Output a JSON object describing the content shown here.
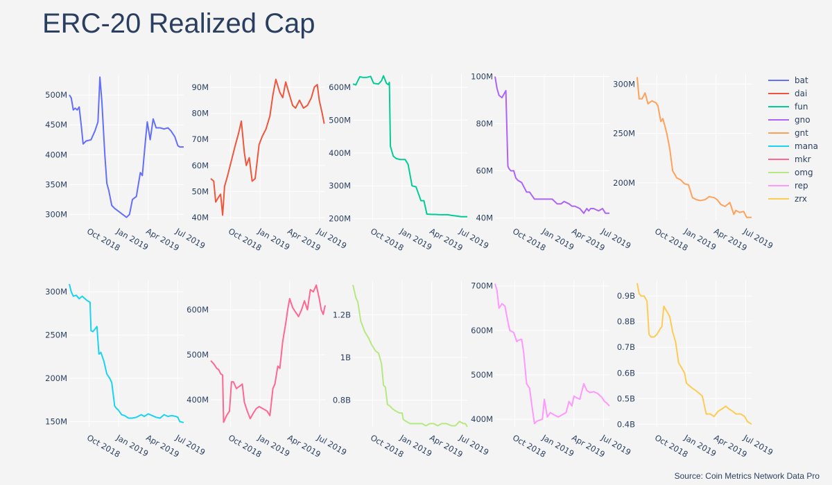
{
  "title": "ERC-20 Realized Cap",
  "source": "Source: Coin Metrics Network Data Pro",
  "legend": [
    {
      "name": "bat",
      "color": "#636efa"
    },
    {
      "name": "dai",
      "color": "#EF553B"
    },
    {
      "name": "fun",
      "color": "#00cc96"
    },
    {
      "name": "gno",
      "color": "#ab63fa"
    },
    {
      "name": "gnt",
      "color": "#FFA15A"
    },
    {
      "name": "mana",
      "color": "#19d3f3"
    },
    {
      "name": "mkr",
      "color": "#FF6692"
    },
    {
      "name": "omg",
      "color": "#B6E880"
    },
    {
      "name": "rep",
      "color": "#FF97FF"
    },
    {
      "name": "zrx",
      "color": "#FECB52"
    }
  ],
  "chart_data": [
    {
      "type": "line",
      "name": "bat",
      "color": "#636efa",
      "x_unit": "months since 2018-07-01",
      "xlim": [
        1.0,
        12.6
      ],
      "x_ticks": [
        3,
        6,
        9,
        12
      ],
      "x_tick_labels": [
        "Oct 2018",
        "Jan 2019",
        "Apr 2019",
        "Jul 2019"
      ],
      "ylim": [
        290,
        535
      ],
      "y_ticks": [
        300,
        350,
        400,
        450,
        500
      ],
      "y_tick_labels": [
        "300M",
        "350M",
        "400M",
        "450M",
        "500M"
      ],
      "y_unit": "USD millions",
      "x": [
        1.0,
        1.2,
        1.4,
        1.6,
        1.8,
        2.0,
        2.2,
        2.4,
        2.7,
        3.2,
        3.6,
        3.9,
        4.1,
        4.3,
        4.6,
        4.8,
        5.0,
        5.3,
        5.6,
        6.0,
        6.4,
        6.8,
        7.1,
        7.4,
        7.8,
        8.2,
        8.4,
        8.7,
        8.9,
        9.2,
        9.5,
        9.8,
        10.2,
        10.6,
        11.0,
        11.3,
        11.7,
        12.0,
        12.2,
        12.6
      ],
      "y": [
        500,
        495,
        475,
        478,
        475,
        480,
        450,
        418,
        423,
        425,
        440,
        455,
        530,
        490,
        400,
        352,
        340,
        315,
        310,
        305,
        300,
        295,
        300,
        325,
        330,
        370,
        365,
        420,
        455,
        425,
        460,
        445,
        445,
        443,
        445,
        440,
        430,
        415,
        413,
        413
      ]
    },
    {
      "type": "line",
      "name": "dai",
      "color": "#EF553B",
      "x_unit": "months since 2018-07-01",
      "xlim": [
        1.0,
        12.6
      ],
      "x_ticks": [
        3,
        6,
        9,
        12
      ],
      "x_tick_labels": [
        "Oct 2018",
        "Jan 2019",
        "Apr 2019",
        "Jul 2019"
      ],
      "ylim": [
        39,
        95
      ],
      "y_ticks": [
        40,
        50,
        60,
        70,
        80,
        90
      ],
      "y_tick_labels": [
        "40M",
        "50M",
        "60M",
        "70M",
        "80M",
        "90M"
      ],
      "y_unit": "USD millions",
      "x": [
        1.0,
        1.3,
        1.5,
        1.8,
        2.0,
        2.2,
        2.4,
        2.7,
        3.1,
        3.5,
        3.8,
        4.1,
        4.4,
        4.6,
        4.9,
        5.2,
        5.5,
        5.9,
        6.2,
        6.6,
        7.0,
        7.3,
        7.6,
        8.0,
        8.3,
        8.6,
        8.9,
        9.3,
        9.6,
        10.0,
        10.4,
        10.8,
        11.2,
        11.5,
        11.8,
        12.0,
        12.3,
        12.5
      ],
      "y": [
        55,
        54,
        46,
        48,
        49,
        41,
        52,
        56,
        62,
        68,
        72,
        77,
        65,
        60,
        63,
        54,
        55,
        68,
        71,
        74,
        79,
        87,
        93,
        88,
        86,
        92,
        88,
        83,
        82,
        85,
        82,
        83,
        86,
        90,
        91,
        85,
        80,
        76
      ]
    },
    {
      "type": "line",
      "name": "fun",
      "color": "#00cc96",
      "x_unit": "months since 2018-07-01",
      "xlim": [
        1.0,
        12.6
      ],
      "x_ticks": [
        3,
        6,
        9,
        12
      ],
      "x_tick_labels": [
        "Oct 2018",
        "Jan 2019",
        "Apr 2019",
        "Jul 2019"
      ],
      "ylim": [
        195,
        640
      ],
      "y_ticks": [
        200,
        300,
        400,
        500,
        600
      ],
      "y_tick_labels": [
        "200M",
        "300M",
        "400M",
        "500M",
        "600M"
      ],
      "y_unit": "USD millions",
      "x": [
        1.0,
        1.3,
        1.5,
        1.7,
        2.0,
        2.4,
        2.8,
        3.1,
        3.6,
        3.9,
        4.1,
        4.4,
        4.6,
        4.7,
        4.8,
        5.1,
        5.4,
        5.8,
        6.3,
        6.6,
        7.0,
        7.4,
        7.9,
        8.2,
        8.5,
        9.0,
        9.4,
        9.8,
        10.2,
        10.6,
        11.0,
        11.5,
        12.0,
        12.6
      ],
      "y": [
        610,
        607,
        620,
        632,
        630,
        630,
        633,
        612,
        610,
        620,
        635,
        612,
        608,
        615,
        420,
        390,
        383,
        380,
        380,
        365,
        300,
        297,
        255,
        255,
        214,
        213,
        213,
        212,
        212,
        212,
        210,
        208,
        206,
        206
      ]
    },
    {
      "type": "line",
      "name": "gno",
      "color": "#ab63fa",
      "x_unit": "months since 2018-07-01",
      "xlim": [
        1.0,
        12.6
      ],
      "x_ticks": [
        3,
        6,
        9,
        12
      ],
      "x_tick_labels": [
        "Oct 2018",
        "Jan 2019",
        "Apr 2019",
        "Jul 2019"
      ],
      "ylim": [
        39,
        101
      ],
      "y_ticks": [
        40,
        60,
        80,
        100
      ],
      "y_tick_labels": [
        "40M",
        "60M",
        "80M",
        "100M"
      ],
      "y_unit": "USD millions",
      "x": [
        1.0,
        1.2,
        1.4,
        1.7,
        2.1,
        2.3,
        2.4,
        2.6,
        2.9,
        3.1,
        3.3,
        3.7,
        4.2,
        4.5,
        5.0,
        5.5,
        5.8,
        6.4,
        6.8,
        7.3,
        7.7,
        8.0,
        8.5,
        8.8,
        9.1,
        9.6,
        10.0,
        10.3,
        10.5,
        10.7,
        11.0,
        11.5,
        11.9,
        12.2,
        12.6
      ],
      "y": [
        100,
        95,
        92,
        91,
        94,
        62,
        61,
        60,
        60,
        57,
        56,
        55,
        51,
        51,
        48,
        48,
        48,
        48,
        48,
        46,
        46,
        47,
        46,
        45,
        45,
        44,
        42,
        44,
        43,
        44,
        44,
        43,
        44,
        42,
        42
      ]
    },
    {
      "type": "line",
      "name": "gnt",
      "color": "#FFA15A",
      "x_unit": "months since 2018-07-01",
      "xlim": [
        1.0,
        12.6
      ],
      "x_ticks": [
        3,
        6,
        9,
        12
      ],
      "x_tick_labels": [
        "Oct 2018",
        "Jan 2019",
        "Apr 2019",
        "Jul 2019"
      ],
      "ylim": [
        162,
        310
      ],
      "y_ticks": [
        200,
        250,
        300
      ],
      "y_tick_labels": [
        "200M",
        "250M",
        "300M"
      ],
      "y_unit": "USD millions",
      "x": [
        1.0,
        1.2,
        1.5,
        1.8,
        2.1,
        2.5,
        2.9,
        3.1,
        3.4,
        3.6,
        3.8,
        4.0,
        4.3,
        4.6,
        4.9,
        5.0,
        5.4,
        5.8,
        6.2,
        6.6,
        7.0,
        7.4,
        7.9,
        8.3,
        8.8,
        9.1,
        9.5,
        9.9,
        10.4,
        10.8,
        11.0,
        11.4,
        11.8,
        12.1,
        12.3,
        12.6
      ],
      "y": [
        307,
        285,
        285,
        291,
        280,
        283,
        281,
        278,
        262,
        265,
        258,
        250,
        235,
        212,
        207,
        205,
        203,
        199,
        198,
        185,
        183,
        182,
        183,
        186,
        185,
        183,
        178,
        176,
        180,
        168,
        172,
        170,
        171,
        165,
        165,
        165
      ]
    },
    {
      "type": "line",
      "name": "mana",
      "color": "#19d3f3",
      "x_unit": "months since 2018-07-01",
      "xlim": [
        1.0,
        12.6
      ],
      "x_ticks": [
        3,
        6,
        9,
        12
      ],
      "x_tick_labels": [
        "Oct 2018",
        "Jan 2019",
        "Apr 2019",
        "Jul 2019"
      ],
      "ylim": [
        144,
        313
      ],
      "y_ticks": [
        150,
        200,
        250,
        300
      ],
      "y_tick_labels": [
        "150M",
        "200M",
        "250M",
        "300M"
      ],
      "y_unit": "USD millions",
      "x": [
        1.0,
        1.2,
        1.4,
        1.7,
        2.0,
        2.3,
        2.5,
        2.8,
        3.1,
        3.2,
        3.4,
        3.8,
        4.0,
        4.2,
        4.5,
        4.8,
        5.1,
        5.3,
        5.6,
        5.8,
        6.0,
        6.3,
        6.6,
        7.0,
        7.4,
        7.8,
        8.3,
        8.6,
        9.0,
        9.4,
        9.8,
        10.2,
        10.6,
        11.0,
        11.4,
        11.8,
        12.0,
        12.2,
        12.6
      ],
      "y": [
        309,
        300,
        295,
        296,
        292,
        295,
        293,
        290,
        288,
        255,
        254,
        260,
        228,
        230,
        220,
        205,
        200,
        195,
        168,
        165,
        163,
        158,
        157,
        154,
        154,
        155,
        158,
        156,
        159,
        157,
        155,
        154,
        158,
        156,
        157,
        156,
        155,
        150,
        149
      ]
    },
    {
      "type": "line",
      "name": "mkr",
      "color": "#FF6692",
      "x_unit": "months since 2018-07-01",
      "xlim": [
        1.0,
        12.6
      ],
      "x_ticks": [
        3,
        6,
        9,
        12
      ],
      "x_tick_labels": [
        "Oct 2018",
        "Jan 2019",
        "Apr 2019",
        "Jul 2019"
      ],
      "ylim": [
        340,
        665
      ],
      "y_ticks": [
        400,
        500,
        600
      ],
      "y_tick_labels": [
        "400M",
        "500M",
        "600M"
      ],
      "y_unit": "USD millions",
      "x": [
        1.0,
        1.3,
        1.6,
        1.8,
        2.0,
        2.2,
        2.3,
        2.6,
        2.9,
        3.1,
        3.3,
        3.6,
        3.9,
        4.2,
        4.4,
        4.7,
        5.0,
        5.3,
        5.6,
        5.9,
        6.3,
        6.7,
        7.0,
        7.3,
        7.5,
        7.8,
        8.0,
        8.3,
        8.6,
        8.8,
        9.0,
        9.3,
        9.6,
        9.9,
        10.2,
        10.5,
        10.8,
        11.1,
        11.4,
        11.7,
        12.0,
        12.2,
        12.4,
        12.6
      ],
      "y": [
        487,
        480,
        470,
        467,
        458,
        455,
        350,
        365,
        375,
        440,
        440,
        425,
        430,
        435,
        395,
        375,
        358,
        370,
        380,
        385,
        380,
        375,
        365,
        425,
        435,
        475,
        470,
        530,
        570,
        600,
        625,
        605,
        595,
        585,
        600,
        620,
        600,
        645,
        640,
        655,
        625,
        600,
        590,
        610
      ]
    },
    {
      "type": "line",
      "name": "omg",
      "color": "#B6E880",
      "x_unit": "months since 2018-07-01",
      "xlim": [
        1.0,
        12.6
      ],
      "x_ticks": [
        3,
        6,
        9,
        12
      ],
      "x_tick_labels": [
        "Oct 2018",
        "Jan 2019",
        "Apr 2019",
        "Jul 2019"
      ],
      "ylim": [
        0.675,
        1.36
      ],
      "y_ticks": [
        0.8,
        1.0,
        1.2
      ],
      "y_tick_labels": [
        "0.8B",
        "1B",
        "1.2B"
      ],
      "y_unit": "USD billions",
      "x": [
        1.0,
        1.3,
        1.5,
        1.8,
        2.2,
        2.6,
        2.9,
        3.3,
        3.6,
        3.9,
        4.1,
        4.3,
        4.5,
        4.8,
        5.0,
        5.3,
        5.7,
        6.0,
        6.1,
        6.4,
        6.8,
        7.2,
        7.6,
        8.0,
        8.4,
        8.8,
        9.2,
        9.6,
        10.0,
        10.5,
        11.0,
        11.4,
        11.8,
        12.2,
        12.4,
        12.6
      ],
      "y": [
        1.34,
        1.28,
        1.26,
        1.17,
        1.12,
        1.09,
        1.06,
        1.03,
        1.02,
        0.97,
        0.87,
        0.86,
        0.78,
        0.77,
        0.76,
        0.75,
        0.74,
        0.74,
        0.71,
        0.7,
        0.69,
        0.69,
        0.69,
        0.69,
        0.68,
        0.69,
        0.69,
        0.68,
        0.69,
        0.69,
        0.68,
        0.68,
        0.7,
        0.69,
        0.69,
        0.675
      ]
    },
    {
      "type": "line",
      "name": "rep",
      "color": "#FF97FF",
      "x_unit": "months since 2018-07-01",
      "xlim": [
        1.0,
        12.6
      ],
      "x_ticks": [
        3,
        6,
        9,
        12
      ],
      "x_tick_labels": [
        "Oct 2018",
        "Jan 2019",
        "Apr 2019",
        "Jul 2019"
      ],
      "ylim": [
        383,
        712
      ],
      "y_ticks": [
        400,
        500,
        600,
        700
      ],
      "y_tick_labels": [
        "400M",
        "500M",
        "600M",
        "700M"
      ],
      "y_unit": "USD millions",
      "x": [
        1.0,
        1.2,
        1.4,
        1.7,
        2.0,
        2.3,
        2.5,
        2.9,
        3.2,
        3.4,
        3.7,
        3.9,
        4.2,
        4.5,
        4.8,
        5.0,
        5.2,
        5.5,
        5.8,
        6.0,
        6.3,
        6.6,
        7.0,
        7.4,
        7.8,
        8.2,
        8.5,
        8.8,
        9.0,
        9.3,
        9.6,
        10.0,
        10.3,
        10.6,
        11.0,
        11.4,
        11.8,
        12.1,
        12.3,
        12.6
      ],
      "y": [
        705,
        690,
        650,
        660,
        655,
        620,
        600,
        595,
        575,
        578,
        580,
        550,
        480,
        470,
        420,
        390,
        395,
        398,
        400,
        445,
        405,
        415,
        410,
        405,
        410,
        415,
        440,
        430,
        452,
        448,
        445,
        480,
        465,
        460,
        462,
        458,
        450,
        440,
        437,
        430
      ]
    },
    {
      "type": "line",
      "name": "zrx",
      "color": "#FECB52",
      "x_unit": "months since 2018-07-01",
      "xlim": [
        1.0,
        12.6
      ],
      "x_ticks": [
        3,
        6,
        9,
        12
      ],
      "x_tick_labels": [
        "Oct 2018",
        "Jan 2019",
        "Apr 2019",
        "Jul 2019"
      ],
      "ylim": [
        0.39,
        0.96
      ],
      "y_ticks": [
        0.4,
        0.5,
        0.6,
        0.7,
        0.8,
        0.9
      ],
      "y_tick_labels": [
        "0.4B",
        "0.5B",
        "0.6B",
        "0.7B",
        "0.8B",
        "0.9B"
      ],
      "y_unit": "USD billions",
      "x": [
        1.0,
        1.2,
        1.4,
        1.7,
        2.0,
        2.2,
        2.4,
        2.7,
        3.0,
        3.3,
        3.5,
        3.7,
        4.0,
        4.3,
        4.6,
        4.9,
        5.2,
        5.5,
        5.8,
        6.0,
        6.3,
        6.6,
        7.0,
        7.3,
        7.6,
        8.0,
        8.4,
        8.8,
        9.2,
        9.6,
        10.0,
        10.3,
        10.7,
        11.0,
        11.5,
        11.9,
        12.2,
        12.6
      ],
      "y": [
        0.95,
        0.91,
        0.9,
        0.9,
        0.88,
        0.75,
        0.74,
        0.74,
        0.75,
        0.77,
        0.78,
        0.86,
        0.84,
        0.82,
        0.76,
        0.72,
        0.64,
        0.62,
        0.6,
        0.56,
        0.55,
        0.54,
        0.53,
        0.52,
        0.51,
        0.44,
        0.44,
        0.43,
        0.45,
        0.46,
        0.47,
        0.46,
        0.45,
        0.44,
        0.44,
        0.43,
        0.41,
        0.4
      ]
    }
  ]
}
